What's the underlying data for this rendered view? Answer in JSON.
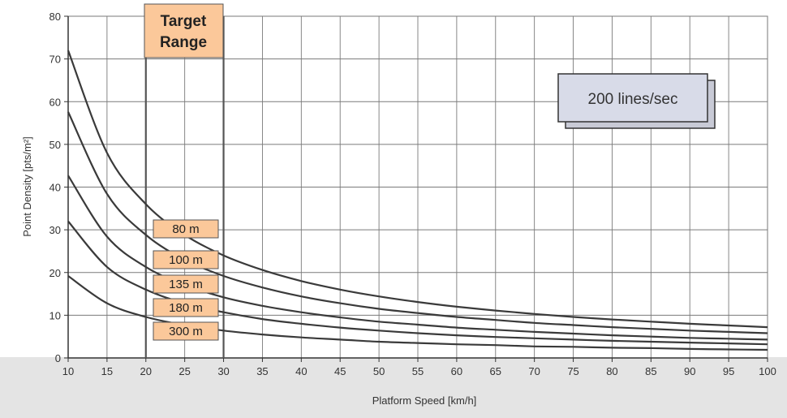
{
  "chart_data": {
    "type": "line",
    "title": "",
    "xlabel": "Platform Speed [km/h]",
    "ylabel": "Point Density [pts/m²]",
    "xlim": [
      10,
      100
    ],
    "ylim": [
      0,
      80
    ],
    "grid": true,
    "x_ticks": [
      10,
      15,
      20,
      25,
      30,
      35,
      40,
      45,
      50,
      55,
      60,
      65,
      70,
      75,
      80,
      85,
      90,
      95,
      100
    ],
    "y_ticks": [
      0,
      10,
      20,
      30,
      40,
      50,
      60,
      70,
      80
    ],
    "x": [
      10,
      15,
      20,
      25,
      30,
      35,
      40,
      45,
      50,
      55,
      60,
      65,
      70,
      75,
      80,
      85,
      90,
      95,
      100
    ],
    "series": [
      {
        "name": "80 m",
        "values": [
          72,
          48,
          36,
          28.8,
          24,
          20.6,
          18,
          16,
          14.4,
          13.1,
          12,
          11.1,
          10.3,
          9.6,
          9,
          8.5,
          8,
          7.6,
          7.2
        ]
      },
      {
        "name": "100 m",
        "values": [
          57.6,
          38.4,
          28.8,
          23,
          19.2,
          16.5,
          14.4,
          12.8,
          11.5,
          10.5,
          9.6,
          8.9,
          8.2,
          7.7,
          7.2,
          6.8,
          6.4,
          6.1,
          5.8
        ]
      },
      {
        "name": "135 m",
        "values": [
          42.7,
          28.4,
          21.3,
          17.1,
          14.2,
          12.2,
          10.7,
          9.5,
          8.5,
          7.8,
          7.1,
          6.6,
          6.1,
          5.7,
          5.3,
          5,
          4.7,
          4.5,
          4.3
        ]
      },
      {
        "name": "180 m",
        "values": [
          32,
          21.3,
          16,
          12.8,
          10.7,
          9.1,
          8,
          7.1,
          6.4,
          5.8,
          5.3,
          4.9,
          4.6,
          4.3,
          4,
          3.8,
          3.6,
          3.4,
          3.2
        ]
      },
      {
        "name": "300 m",
        "values": [
          19.2,
          12.8,
          9.6,
          7.7,
          6.4,
          5.5,
          4.8,
          4.3,
          3.8,
          3.5,
          3.2,
          3,
          2.7,
          2.6,
          2.4,
          2.3,
          2.1,
          2,
          1.9
        ]
      }
    ],
    "target_range": {
      "label_line1": "Target",
      "label_line2": "Range",
      "x_from": 20,
      "x_to": 30
    },
    "annotation": "200 lines/sec",
    "colors": {
      "label_fill": "#fbc89a",
      "label_border": "#555555",
      "curve": "#3a3a3a",
      "grid": "#7a7a7a",
      "bottom_band": "#e4e4e4",
      "annotation_fill": "#d8dbe8"
    }
  }
}
